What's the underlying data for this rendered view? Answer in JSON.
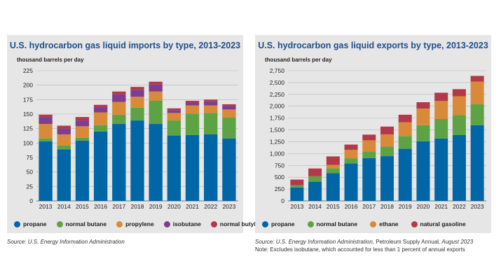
{
  "charts": {
    "left": {
      "units_label": "thousand barrels per day",
      "source": "Source: U.S. Energy Information Administration"
    },
    "right": {
      "units_label": "thousand barrels per day",
      "source_prefix": "Source: U.S. Energy Information Administration, ",
      "source_plain": "Petroleum Supply Annual",
      "source_suffix": ", August 2023",
      "note": "Note: Excludes isobutane, which accounted for less than 1 percent of annual exports"
    }
  },
  "chart_data": [
    {
      "type": "bar",
      "stacked": true,
      "title": "U.S. hydrocarbon gas liquid imports by type, 2013-2023",
      "ylabel": "thousand barrels per day",
      "ylim": [
        0,
        225
      ],
      "yticks": [
        0,
        25,
        50,
        75,
        100,
        125,
        150,
        175,
        200,
        225
      ],
      "categories": [
        "2013",
        "2014",
        "2015",
        "2016",
        "2017",
        "2018",
        "2019",
        "2020",
        "2021",
        "2022",
        "2023"
      ],
      "series": [
        {
          "name": "propane",
          "color": "#0066a6",
          "values": [
            103,
            89,
            104,
            120,
            133,
            139,
            133,
            113,
            114,
            115,
            108
          ]
        },
        {
          "name": "normal butane",
          "color": "#5ea343",
          "values": [
            5,
            7,
            5,
            11,
            16,
            22,
            40,
            26,
            37,
            37,
            36
          ]
        },
        {
          "name": "propylene",
          "color": "#d98a39",
          "values": [
            25,
            19,
            20,
            22,
            22,
            19,
            16,
            13,
            14,
            13,
            14
          ]
        },
        {
          "name": "isobutane",
          "color": "#7e3d8f",
          "values": [
            12,
            10,
            10,
            9,
            13,
            12,
            12,
            5,
            5,
            7,
            6
          ]
        },
        {
          "name": "normal butylene",
          "color": "#b23a48",
          "values": [
            4,
            5,
            6,
            4,
            5,
            5,
            5,
            3,
            3,
            3,
            3
          ]
        }
      ],
      "legend": "bottom",
      "grid": true
    },
    {
      "type": "bar",
      "stacked": true,
      "title": "U.S. hydrocarbon gas liquid exports by type, 2013-2023",
      "ylabel": "thousand barrels per day",
      "ylim": [
        0,
        2750
      ],
      "yticks": [
        0,
        250,
        500,
        750,
        1000,
        1250,
        1500,
        1750,
        2000,
        2250,
        2500,
        2750
      ],
      "ytick_labels": [
        "0",
        "250",
        "500",
        "750",
        "1,000",
        "1,250",
        "1,500",
        "1,750",
        "2,000",
        "2,250",
        "2,500",
        "2,750"
      ],
      "categories": [
        "2013",
        "2014",
        "2015",
        "2016",
        "2017",
        "2018",
        "2019",
        "2020",
        "2021",
        "2022",
        "2023"
      ],
      "series": [
        {
          "name": "propane",
          "color": "#0066a6",
          "values": [
            285,
            405,
            585,
            790,
            905,
            945,
            1100,
            1260,
            1320,
            1390,
            1600
          ]
        },
        {
          "name": "normal butane",
          "color": "#5ea343",
          "values": [
            45,
            115,
            105,
            110,
            140,
            200,
            270,
            340,
            410,
            420,
            440
          ]
        },
        {
          "name": "ethane",
          "color": "#d98a39",
          "values": [
            0,
            0,
            70,
            180,
            235,
            260,
            290,
            350,
            380,
            400,
            480
          ]
        },
        {
          "name": "natural gasoline",
          "color": "#b23a48",
          "values": [
            120,
            165,
            180,
            110,
            120,
            165,
            160,
            135,
            175,
            150,
            120
          ]
        }
      ],
      "legend": "bottom",
      "grid": true
    }
  ]
}
